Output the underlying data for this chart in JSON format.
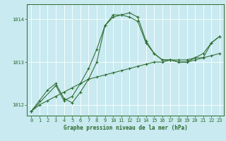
{
  "xlabel": "Graphe pression niveau de la mer (hPa)",
  "xlim": [
    -0.5,
    23.5
  ],
  "ylim": [
    1011.75,
    1014.35
  ],
  "yticks": [
    1012,
    1013,
    1014
  ],
  "xticks": [
    0,
    1,
    2,
    3,
    4,
    5,
    6,
    7,
    8,
    9,
    10,
    11,
    12,
    13,
    14,
    15,
    16,
    17,
    18,
    19,
    20,
    21,
    22,
    23
  ],
  "bg_color": "#c8eaf0",
  "line_color": "#2d6a2d",
  "grid_color": "#ffffff",
  "series1_x": [
    0,
    1,
    2,
    3,
    4,
    5,
    6,
    7,
    8,
    9,
    10,
    11,
    12,
    13,
    14,
    15,
    16,
    17,
    18,
    19,
    20,
    21,
    22,
    23
  ],
  "series1_y": [
    1011.85,
    1012.0,
    1012.1,
    1012.2,
    1012.3,
    1012.4,
    1012.5,
    1012.6,
    1012.65,
    1012.7,
    1012.75,
    1012.8,
    1012.85,
    1012.9,
    1012.95,
    1013.0,
    1013.0,
    1013.05,
    1013.05,
    1013.05,
    1013.1,
    1013.1,
    1013.15,
    1013.2
  ],
  "series2_x": [
    0,
    1,
    2,
    3,
    4,
    5,
    6,
    7,
    8,
    9,
    10,
    11,
    12,
    13,
    14,
    15,
    16,
    17,
    18,
    19,
    20,
    21,
    22,
    23
  ],
  "series2_y": [
    1011.85,
    1012.1,
    1012.35,
    1012.5,
    1012.15,
    1012.05,
    1012.3,
    1012.6,
    1013.0,
    1013.85,
    1014.05,
    1014.1,
    1014.15,
    1014.05,
    1013.5,
    1013.2,
    1013.05,
    1013.05,
    1013.0,
    1013.0,
    1013.1,
    1013.2,
    1013.45,
    1013.6
  ],
  "series3_x": [
    0,
    3,
    4,
    5,
    6,
    7,
    8,
    9,
    10,
    11,
    12,
    13,
    14,
    15,
    16,
    17,
    18,
    19,
    20,
    21,
    22,
    23
  ],
  "series3_y": [
    1011.85,
    1012.45,
    1012.1,
    1012.2,
    1012.5,
    1012.85,
    1013.3,
    1013.85,
    1014.1,
    1014.1,
    1014.05,
    1013.95,
    1013.45,
    1013.2,
    1013.05,
    1013.05,
    1013.0,
    1013.0,
    1013.05,
    1013.1,
    1013.45,
    1013.6
  ]
}
